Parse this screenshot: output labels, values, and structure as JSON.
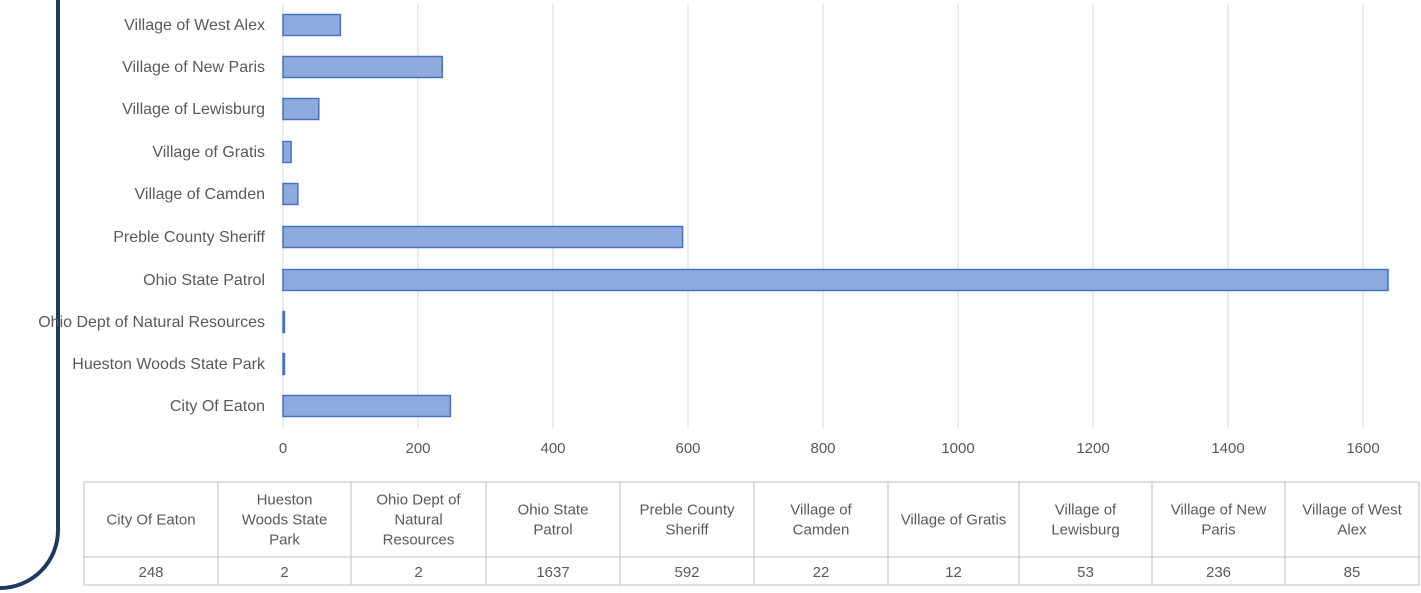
{
  "chart_data": {
    "type": "bar",
    "orientation": "horizontal",
    "title": "",
    "xlabel": "",
    "ylabel": "",
    "categories": [
      "City Of Eaton",
      "Hueston Woods State Park",
      "Ohio Dept of Natural Resources",
      "Ohio State Patrol",
      "Preble County Sheriff",
      "Village of Camden",
      "Village of Gratis",
      "Village of Lewisburg",
      "Village of New Paris",
      "Village of West Alex"
    ],
    "values": [
      248,
      2,
      2,
      1637,
      592,
      22,
      12,
      53,
      236,
      85
    ],
    "xlim": [
      0,
      1600
    ],
    "x_ticks": [
      "0",
      "200",
      "400",
      "600",
      "800",
      "1000",
      "1200",
      "1400",
      "1600"
    ],
    "grid": true,
    "data_table": {
      "headers": [
        "City Of Eaton",
        "Hueston Woods State Park",
        "Ohio Dept of Natural Resources",
        "Ohio State Patrol",
        "Preble County Sheriff",
        "Village of Camden",
        "Village of Gratis",
        "Village of Lewisburg",
        "Village of New Paris",
        "Village of West Alex"
      ],
      "values": [
        "248",
        "2",
        "2",
        "1637",
        "592",
        "22",
        "12",
        "53",
        "236",
        "85"
      ]
    },
    "colors": {
      "bar_fill": "#8faadc",
      "bar_stroke": "#4472c4",
      "grid": "#d9d9d9",
      "text": "#595959"
    }
  }
}
